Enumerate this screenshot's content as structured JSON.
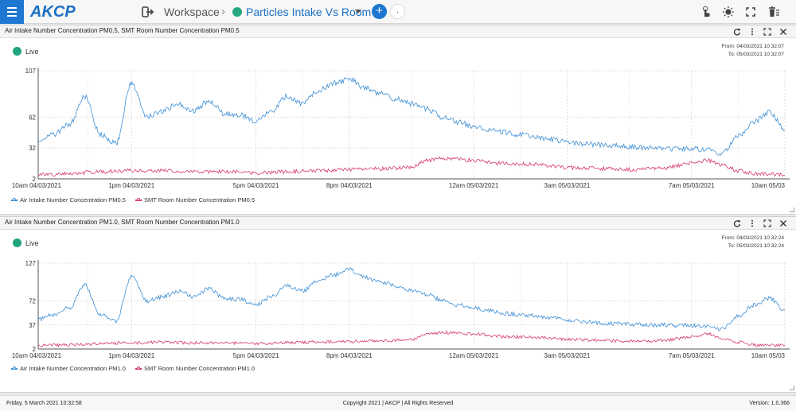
{
  "app": {
    "logo": "AKCP",
    "workspace_label": "Workspace",
    "workspace_name": "Particles Intake Vs Room",
    "add_label": "+",
    "pending_label": "."
  },
  "colors": {
    "accent": "#1e77d1",
    "live": "#1fa47d",
    "series_intake": "#3d8fd6",
    "series_room": "#d6376a"
  },
  "panels": [
    {
      "title": "Air Intake Number Concentration PM0.5, SMT Room Number Concentration PM0.5",
      "live_label": "Live",
      "from": "From: 04/03/2021 10:32:07",
      "to": "To: 05/03/2021 10:32:07",
      "legend": [
        "Air Intake Number Concentration PM0.5",
        "SMT Room Number Concentration PM0.5"
      ]
    },
    {
      "title": "Air Intake Number Concentration PM1.0, SMT Room Number Concentration PM1.0",
      "live_label": "Live",
      "from": "From: 04/03/2021 10:32:24",
      "to": "To: 05/03/2021 10:32:24",
      "legend": [
        "Air Intake Number Concentration PM1.0",
        "SMT Room Number Concentration PM1.0"
      ]
    }
  ],
  "chart_data": [
    {
      "type": "line",
      "x_labels": [
        "10am 04/03/2021",
        "1pm 04/03/2021",
        "5pm 04/03/2021",
        "8pm 04/03/2021",
        "12am 05/03/2021",
        "3am 05/03/2021",
        "7am 05/03/2021",
        "10am 05/03"
      ],
      "x_tick_hours": [
        0,
        3,
        7,
        10,
        14,
        17,
        21,
        24
      ],
      "y_ticks": [
        2,
        32,
        62,
        107
      ],
      "ylim": [
        2,
        107
      ],
      "series": [
        {
          "name": "Air Intake Number Concentration PM0.5",
          "color": "#3d8fd6",
          "x": [
            0,
            0.5,
            1,
            1.5,
            2,
            2.5,
            3,
            3.5,
            4,
            4.5,
            5,
            5.5,
            6,
            6.5,
            7,
            7.5,
            8,
            8.5,
            9,
            9.5,
            10,
            10.5,
            11,
            11.5,
            12,
            12.5,
            13,
            13.5,
            14,
            14.5,
            15,
            15.5,
            16,
            16.5,
            17,
            17.5,
            18,
            18.5,
            19,
            19.5,
            20,
            20.5,
            21,
            21.5,
            22,
            22.5,
            23,
            23.5,
            24
          ],
          "values": [
            40,
            45,
            55,
            82,
            45,
            36,
            95,
            63,
            68,
            75,
            68,
            78,
            65,
            64,
            58,
            68,
            82,
            75,
            88,
            95,
            99,
            90,
            85,
            80,
            75,
            70,
            62,
            57,
            53,
            50,
            47,
            45,
            43,
            40,
            38,
            36,
            35,
            34,
            33,
            32,
            32,
            31,
            31,
            30,
            27,
            44,
            57,
            67,
            50
          ]
        },
        {
          "name": "SMT Room Number Concentration PM0.5",
          "color": "#d6376a",
          "x": [
            0,
            1,
            2,
            3,
            4,
            5,
            6,
            7,
            8,
            9,
            10,
            11,
            12,
            12.5,
            13,
            14,
            15,
            16,
            17,
            18,
            19,
            20,
            21,
            21.5,
            22,
            22.5,
            23,
            24
          ],
          "values": [
            6,
            7,
            9,
            10,
            10,
            9,
            9,
            8,
            9,
            10,
            11,
            12,
            13,
            20,
            22,
            20,
            17,
            16,
            13,
            12,
            11,
            12,
            17,
            20,
            15,
            10,
            7,
            6
          ]
        }
      ]
    },
    {
      "type": "line",
      "x_labels": [
        "10am 04/03/2021",
        "1pm 04/03/2021",
        "5pm 04/03/2021",
        "8pm 04/03/2021",
        "12am 05/03/2021",
        "3am 05/03/2021",
        "7am 05/03/2021",
        "10am 05/03"
      ],
      "x_tick_hours": [
        0,
        3,
        7,
        10,
        14,
        17,
        21,
        24
      ],
      "y_ticks": [
        2,
        37,
        72,
        127
      ],
      "ylim": [
        2,
        127
      ],
      "series": [
        {
          "name": "Air Intake Number Concentration PM1.0",
          "color": "#3d8fd6",
          "x": [
            0,
            0.5,
            1,
            1.5,
            2,
            2.5,
            3,
            3.5,
            4,
            4.5,
            5,
            5.5,
            6,
            6.5,
            7,
            7.5,
            8,
            8.5,
            9,
            9.5,
            10,
            10.5,
            11,
            11.5,
            12,
            12.5,
            13,
            13.5,
            14,
            14.5,
            15,
            15.5,
            16,
            16.5,
            17,
            17.5,
            18,
            18.5,
            19,
            19.5,
            20,
            20.5,
            21,
            21.5,
            22,
            22.5,
            23,
            23.5,
            24
          ],
          "values": [
            45,
            52,
            62,
            95,
            52,
            43,
            108,
            72,
            78,
            86,
            78,
            90,
            75,
            74,
            67,
            78,
            95,
            87,
            102,
            110,
            118,
            106,
            100,
            94,
            88,
            82,
            72,
            66,
            62,
            58,
            54,
            52,
            50,
            47,
            44,
            42,
            40,
            39,
            38,
            37,
            37,
            36,
            36,
            35,
            31,
            50,
            66,
            76,
            58
          ]
        },
        {
          "name": "SMT Room Number Concentration PM1.0",
          "color": "#d6376a",
          "x": [
            0,
            1,
            2,
            3,
            4,
            5,
            6,
            7,
            8,
            9,
            10,
            11,
            12,
            12.5,
            13,
            14,
            15,
            16,
            17,
            18,
            19,
            20,
            21,
            21.5,
            22,
            22.5,
            23,
            24
          ],
          "values": [
            7,
            8,
            10,
            11,
            12,
            11,
            11,
            10,
            11,
            12,
            13,
            14,
            16,
            24,
            26,
            24,
            20,
            19,
            16,
            15,
            13,
            14,
            20,
            24,
            18,
            12,
            8,
            7
          ]
        }
      ]
    }
  ],
  "footer": {
    "date": "Friday, 5 March 2021 10:32:58",
    "copyright": "Copyright 2021 | AKCP | All Rights Reserved",
    "version": "Version: 1.0.366"
  }
}
